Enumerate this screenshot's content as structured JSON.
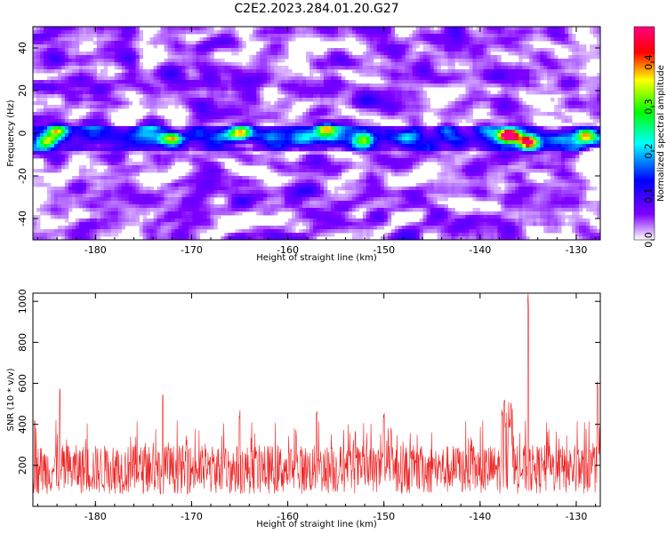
{
  "figure": {
    "title": "C2E2.2023.284.01.20.G27"
  },
  "chart_data": [
    {
      "type": "heatmap",
      "xlabel": "Height of straight line (km)",
      "ylabel": "Frequency (Hz)",
      "xlim": [
        -186.5,
        -127.5
      ],
      "ylim": [
        -50,
        50
      ],
      "xticks": [
        -180,
        -170,
        -160,
        -150,
        -140,
        -130
      ],
      "yticks": [
        -40,
        -20,
        0,
        20,
        40
      ],
      "colorbar": {
        "label": "Normalized spectral amplitude",
        "range": [
          0.0,
          0.48
        ],
        "ticks": [
          0.0,
          0.1,
          0.2,
          0.3,
          0.4
        ],
        "colormap": [
          "#ffffff",
          "#7f00ff",
          "#0000ff",
          "#00ffff",
          "#00ff00",
          "#ffff00",
          "#ff0000",
          "#ff0080"
        ]
      },
      "signal_band": {
        "center_hz": -2,
        "halfwidth_hz": 6
      },
      "hotspots": [
        {
          "x": -137.0,
          "y": -1,
          "value": 0.46
        },
        {
          "x": -135.0,
          "y": -4,
          "value": 0.38
        },
        {
          "x": -185.0,
          "y": -4,
          "value": 0.3
        },
        {
          "x": -184.0,
          "y": 1,
          "value": 0.26
        },
        {
          "x": -172.0,
          "y": -2,
          "value": 0.24
        },
        {
          "x": -165.0,
          "y": 0,
          "value": 0.22
        },
        {
          "x": -156.0,
          "y": 2,
          "value": 0.25
        },
        {
          "x": -152.0,
          "y": -3,
          "value": 0.22
        },
        {
          "x": -129.0,
          "y": -1,
          "value": 0.28
        }
      ]
    },
    {
      "type": "line",
      "xlabel": "Height of straight line (km)",
      "ylabel": "SNR (10 * v/v)",
      "xlim": [
        -186.5,
        -127.5
      ],
      "ylim": [
        0,
        1040
      ],
      "xticks": [
        -180,
        -170,
        -160,
        -150,
        -140,
        -130
      ],
      "yticks": [
        200,
        400,
        600,
        800,
        1000
      ],
      "series": [
        {
          "color": "#ee2222",
          "baseline": 180,
          "typical_peak": 420,
          "peaks": [
            {
              "x": -186.3,
              "y": 450
            },
            {
              "x": -183.7,
              "y": 590
            },
            {
              "x": -173.0,
              "y": 570
            },
            {
              "x": -165.0,
              "y": 470
            },
            {
              "x": -157.0,
              "y": 480
            },
            {
              "x": -150.0,
              "y": 460
            },
            {
              "x": -137.5,
              "y": 520
            },
            {
              "x": -136.8,
              "y": 510
            },
            {
              "x": -135.0,
              "y": 1040
            },
            {
              "x": -127.8,
              "y": 610
            }
          ]
        }
      ]
    }
  ]
}
